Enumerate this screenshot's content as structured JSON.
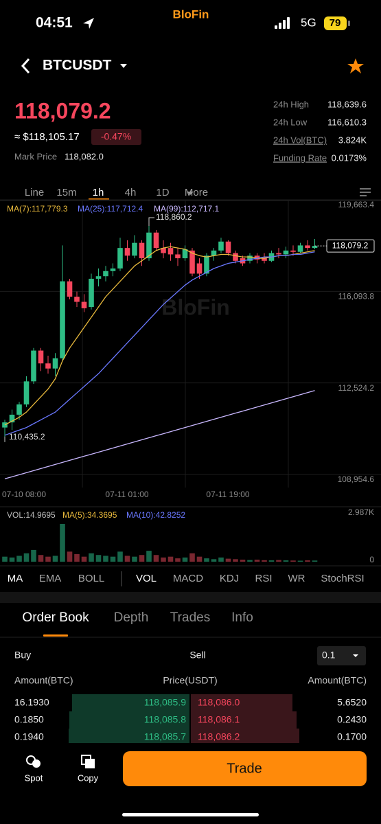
{
  "status": {
    "time": "04:51",
    "brand": "BloFin",
    "network": "5G",
    "battery": "79"
  },
  "header": {
    "symbol": "BTCUSDT"
  },
  "price": {
    "last": "118,079.2",
    "fiat": "≈ $118,105.17",
    "change": "-0.47%",
    "mark_label": "Mark Price",
    "mark": "118,082.0"
  },
  "stats": [
    [
      "24h High",
      "118,639.6"
    ],
    [
      "24h Low",
      "116,610.3"
    ],
    [
      "24h Vol(BTC)",
      "3.824K"
    ],
    [
      "Funding Rate",
      "0.0173%"
    ]
  ],
  "timeframes": [
    "Line",
    "15m",
    "1h",
    "4h",
    "1D",
    "More"
  ],
  "chart_data": [
    {
      "type": "candlestick",
      "watermark": "BloFin",
      "up_color": "#2ebd85",
      "down_color": "#f6465d",
      "ylim": [
        108954.6,
        119663.4
      ],
      "yticks": [
        {
          "value": 119663.4,
          "label": "119,663.4"
        },
        {
          "value": 116093.8,
          "label": "116,093.8"
        },
        {
          "value": 112524.2,
          "label": "112,524.2"
        },
        {
          "value": 108954.6,
          "label": "108,954.6"
        }
      ],
      "x_labels": [
        "07-10 08:00",
        "07-11 01:00",
        "07-11 19:00"
      ],
      "ohlc": [
        [
          111000,
          111300,
          110435.2,
          111200
        ],
        [
          111200,
          111700,
          110900,
          111500
        ],
        [
          111500,
          112000,
          111300,
          111900
        ],
        [
          111900,
          113000,
          111800,
          112800
        ],
        [
          112800,
          114100,
          112700,
          114000
        ],
        [
          114000,
          114100,
          113200,
          113500
        ],
        [
          113500,
          113800,
          113100,
          113300
        ],
        [
          113300,
          113900,
          113000,
          113700
        ],
        [
          113700,
          118100,
          113600,
          116700
        ],
        [
          116700,
          116800,
          116000,
          116100
        ],
        [
          116100,
          116300,
          115700,
          115900
        ],
        [
          115900,
          116200,
          115500,
          115650
        ],
        [
          115700,
          117000,
          115600,
          116800
        ],
        [
          116800,
          117200,
          116500,
          116900
        ],
        [
          116900,
          117300,
          116700,
          117100
        ],
        [
          117100,
          117400,
          116900,
          117200
        ],
        [
          117200,
          118400,
          117100,
          118000
        ],
        [
          118000,
          118300,
          117500,
          117700
        ],
        [
          117700,
          118500,
          117600,
          118200
        ],
        [
          118200,
          118300,
          117300,
          117600
        ],
        [
          117600,
          118860.2,
          117500,
          118600
        ],
        [
          118600,
          118700,
          117900,
          118000
        ],
        [
          118000,
          118300,
          117600,
          117800
        ],
        [
          118000,
          118200,
          117500,
          117750
        ],
        [
          117750,
          118000,
          117300,
          117600
        ],
        [
          117600,
          118100,
          117500,
          117950
        ],
        [
          117900,
          118000,
          116900,
          117000
        ],
        [
          117400,
          117600,
          116800,
          117000
        ],
        [
          117000,
          117800,
          116900,
          117700
        ],
        [
          117700,
          118000,
          117500,
          117900
        ],
        [
          117900,
          118400,
          117800,
          118250
        ],
        [
          118250,
          118300,
          117700,
          117800
        ],
        [
          117800,
          117900,
          117400,
          117500
        ],
        [
          117600,
          117700,
          117300,
          117400
        ],
        [
          117500,
          117800,
          117400,
          117700
        ],
        [
          117700,
          117800,
          117400,
          117550
        ],
        [
          117600,
          117800,
          117400,
          117500
        ],
        [
          117500,
          117900,
          117450,
          117800
        ],
        [
          117800,
          118000,
          117600,
          117750
        ],
        [
          117750,
          118050,
          117600,
          117900
        ],
        [
          117900,
          118100,
          117700,
          117850
        ],
        [
          117850,
          118200,
          117800,
          118100
        ],
        [
          118100,
          118300,
          117900,
          118000
        ],
        [
          118000,
          118350,
          117950,
          118079.2
        ]
      ],
      "series": [
        {
          "name": "MA(7):117,779.3",
          "color": "#e8b93c",
          "values": [
            111100,
            111250,
            111400,
            111600,
            111900,
            112200,
            112500,
            112900,
            113600,
            114100,
            114500,
            114900,
            115300,
            115700,
            116100,
            116400,
            116700,
            117000,
            117300,
            117500,
            117700,
            117900,
            118000,
            118050,
            118000,
            117950,
            117800,
            117700,
            117650,
            117700,
            117750,
            117750,
            117700,
            117650,
            117650,
            117600,
            117600,
            117650,
            117700,
            117700,
            117750,
            117800,
            117850,
            117900
          ]
        },
        {
          "name": "MA(25):117,712.4",
          "color": "#6a78ff",
          "values": [
            110700,
            110800,
            110900,
            111000,
            111150,
            111300,
            111450,
            111600,
            111850,
            112100,
            112350,
            112600,
            112850,
            113100,
            113400,
            113700,
            114000,
            114300,
            114600,
            114900,
            115200,
            115500,
            115800,
            116050,
            116300,
            116550,
            116750,
            116900,
            117050,
            117200,
            117300,
            117400,
            117450,
            117500,
            117550,
            117600,
            117650,
            117650,
            117700,
            117700,
            117750,
            117750,
            117800,
            117850
          ]
        },
        {
          "name": "MA(99):112,717.1",
          "color": "#c9b8ff",
          "values": [
            109000,
            109080,
            109160,
            109240,
            109320,
            109400,
            109480,
            109560,
            109640,
            109720,
            109800,
            109880,
            109960,
            110040,
            110120,
            110200,
            110280,
            110360,
            110440,
            110520,
            110600,
            110680,
            110760,
            110840,
            110920,
            111000,
            111080,
            111160,
            111240,
            111320,
            111400,
            111480,
            111560,
            111640,
            111720,
            111800,
            111880,
            111960,
            112040,
            112120,
            112200,
            112280,
            112360,
            112440
          ]
        }
      ],
      "last_price_label": "118,079.2",
      "high_label": "118,860.2",
      "low_label": "110,435.2"
    },
    {
      "type": "bar",
      "legend": [
        "VOL:14.9695",
        "MA(5):34.3695",
        "MA(10):42.8252"
      ],
      "legend_colors": [
        "#bdbdbd",
        "#e8b93c",
        "#6a78ff"
      ],
      "ylim": [
        0,
        2987
      ],
      "yticks": [
        {
          "value": 2987,
          "label": "2.987K"
        },
        0
      ],
      "values": [
        300,
        250,
        350,
        500,
        700,
        400,
        300,
        350,
        2250,
        600,
        450,
        300,
        500,
        400,
        350,
        300,
        600,
        350,
        300,
        400,
        650,
        400,
        250,
        300,
        200,
        250,
        500,
        300,
        200,
        150,
        250,
        180,
        150,
        120,
        100,
        120,
        90,
        80,
        100,
        80,
        70,
        60,
        80,
        70
      ]
    }
  ],
  "indicators": [
    "MA",
    "EMA",
    "BOLL",
    "VOL",
    "MACD",
    "KDJ",
    "RSI",
    "WR",
    "StochRSI"
  ],
  "tabs": [
    "Order Book",
    "Depth",
    "Trades",
    "Info"
  ],
  "order_book": {
    "buy": "Buy",
    "sell": "Sell",
    "precision": "0.1",
    "headers": [
      "Amount(BTC)",
      "Price(USDT)",
      "Amount(BTC)"
    ],
    "rows": [
      [
        "16.1930",
        "118,085.9",
        "118,086.0",
        "5.6520"
      ],
      [
        "0.1850",
        "118,085.8",
        "118,086.1",
        "0.2430"
      ],
      [
        "0.1940",
        "118,085.7",
        "118,086.2",
        "0.1700"
      ]
    ]
  },
  "bottom": {
    "spot": "Spot",
    "copy": "Copy",
    "trade": "Trade"
  }
}
